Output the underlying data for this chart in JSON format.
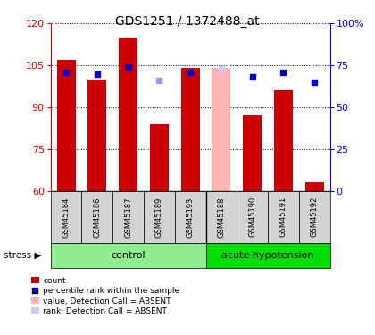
{
  "title": "GDS1251 / 1372488_at",
  "samples": [
    "GSM45184",
    "GSM45186",
    "GSM45187",
    "GSM45189",
    "GSM45193",
    "GSM45188",
    "GSM45190",
    "GSM45191",
    "GSM45192"
  ],
  "bar_values": [
    107,
    100,
    115,
    84,
    104,
    104,
    87,
    96,
    63
  ],
  "bar_colors": [
    "#cc0000",
    "#cc0000",
    "#cc0000",
    "#cc0000",
    "#cc0000",
    "#ffb3b3",
    "#cc0000",
    "#cc0000",
    "#cc0000"
  ],
  "dot_values": [
    71,
    70,
    74,
    66,
    71,
    73,
    68,
    71,
    65
  ],
  "dot_colors": [
    "#0000cc",
    "#0000cc",
    "#0000cc",
    "#9999ff",
    "#0000cc",
    "#ccccff",
    "#0000cc",
    "#0000cc",
    "#0000cc"
  ],
  "ylim": [
    60,
    120
  ],
  "y_ticks": [
    60,
    75,
    90,
    105,
    120
  ],
  "y2_ticks": [
    0,
    25,
    50,
    75,
    100
  ],
  "y2_labels": [
    "0",
    "25",
    "50",
    "75",
    "100%"
  ],
  "bar_bottom": 60,
  "ctrl_color": "#90ee90",
  "hypo_color": "#00dd00",
  "absent_bar_idx": 5,
  "absent_dot_idx": 5
}
